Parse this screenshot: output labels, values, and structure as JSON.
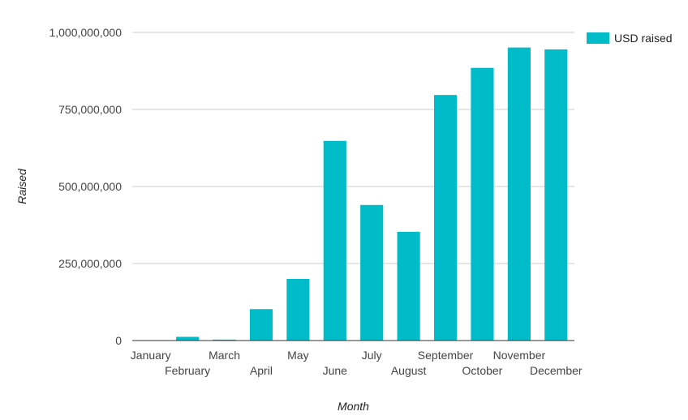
{
  "chart_data": {
    "type": "bar",
    "categories": [
      "January",
      "February",
      "March",
      "April",
      "May",
      "June",
      "July",
      "August",
      "September",
      "October",
      "November",
      "December"
    ],
    "series": [
      {
        "name": "USD raised",
        "color": "#00BCC9",
        "values": [
          1000000,
          12000000,
          3000000,
          102000000,
          200000000,
          648000000,
          440000000,
          353000000,
          797000000,
          885000000,
          951000000,
          945000000
        ]
      }
    ],
    "title": "",
    "xlabel": "Month",
    "ylabel": "Raised",
    "ylim": [
      0,
      1000000000
    ],
    "yticks": [
      0,
      250000000,
      500000000,
      750000000,
      1000000000
    ],
    "ytick_labels": [
      "0",
      "250,000,000",
      "500,000,000",
      "750,000,000",
      "1,000,000,000"
    ],
    "grid": true,
    "legend_position": "top-right"
  }
}
